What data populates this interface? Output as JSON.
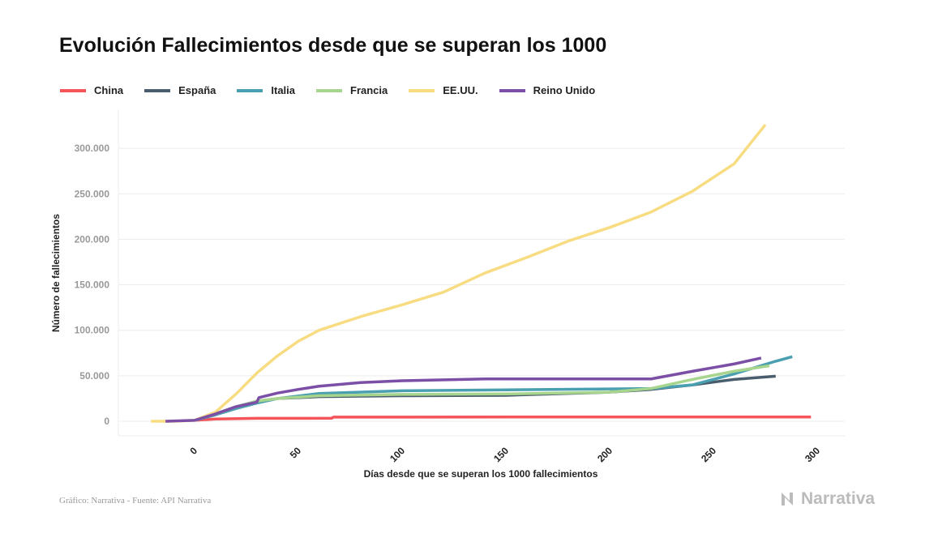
{
  "chart_data": {
    "type": "line",
    "title": "Evolución Fallecimientos desde que se superan los 1000",
    "xlabel": "Días desde que se superan los 1000 fallecimientos",
    "ylabel": "Número de fallecimientos",
    "xlim": [
      -25,
      310
    ],
    "ylim": [
      -15000,
      340000
    ],
    "xticks": [
      0,
      50,
      100,
      150,
      200,
      250,
      300
    ],
    "xtick_labels": [
      "0",
      "50",
      "100",
      "150",
      "200",
      "250",
      "300"
    ],
    "yticks": [
      0,
      50000,
      100000,
      150000,
      200000,
      250000,
      300000
    ],
    "ytick_labels": [
      "0",
      "50.000",
      "100.000",
      "150.000",
      "200.000",
      "250.000",
      "300.000"
    ],
    "grid": true,
    "legend": "top-left",
    "series": [
      {
        "name": "China",
        "color": "#f4545a",
        "points": [
          [
            0,
            1000
          ],
          [
            10,
            2500
          ],
          [
            30,
            3200
          ],
          [
            66,
            3300
          ],
          [
            67,
            4600
          ],
          [
            297,
            4700
          ]
        ]
      },
      {
        "name": "España",
        "color": "#4a5d6e",
        "points": [
          [
            0,
            1000
          ],
          [
            10,
            8000
          ],
          [
            20,
            16000
          ],
          [
            30,
            22000
          ],
          [
            40,
            25000
          ],
          [
            60,
            27000
          ],
          [
            100,
            28000
          ],
          [
            150,
            28500
          ],
          [
            200,
            32000
          ],
          [
            220,
            35000
          ],
          [
            240,
            40000
          ],
          [
            260,
            46000
          ],
          [
            280,
            49500
          ]
        ]
      },
      {
        "name": "Italia",
        "color": "#4aa0b0",
        "points": [
          [
            0,
            1000
          ],
          [
            10,
            7000
          ],
          [
            20,
            14000
          ],
          [
            30,
            20000
          ],
          [
            40,
            25000
          ],
          [
            60,
            30500
          ],
          [
            100,
            33500
          ],
          [
            150,
            34500
          ],
          [
            200,
            35500
          ],
          [
            220,
            36000
          ],
          [
            240,
            40000
          ],
          [
            260,
            52000
          ],
          [
            280,
            66000
          ],
          [
            288,
            71000
          ]
        ]
      },
      {
        "name": "Francia",
        "color": "#a8d58e",
        "points": [
          [
            0,
            1000
          ],
          [
            10,
            8000
          ],
          [
            20,
            16000
          ],
          [
            30,
            22000
          ],
          [
            40,
            25000
          ],
          [
            60,
            28000
          ],
          [
            100,
            29500
          ],
          [
            150,
            30000
          ],
          [
            200,
            32000
          ],
          [
            220,
            36000
          ],
          [
            240,
            46000
          ],
          [
            260,
            55000
          ],
          [
            277,
            61000
          ]
        ]
      },
      {
        "name": "EE.UU.",
        "color": "#f7dc82",
        "points": [
          [
            -21,
            0
          ],
          [
            -10,
            0
          ],
          [
            0,
            1000
          ],
          [
            10,
            10000
          ],
          [
            20,
            30000
          ],
          [
            30,
            53000
          ],
          [
            40,
            72000
          ],
          [
            50,
            88000
          ],
          [
            60,
            100000
          ],
          [
            80,
            115000
          ],
          [
            100,
            128000
          ],
          [
            120,
            142000
          ],
          [
            140,
            163000
          ],
          [
            160,
            180000
          ],
          [
            180,
            198000
          ],
          [
            200,
            213000
          ],
          [
            220,
            230000
          ],
          [
            240,
            253000
          ],
          [
            260,
            283000
          ],
          [
            275,
            326000
          ]
        ]
      },
      {
        "name": "Reino Unido",
        "color": "#7b4fa6",
        "points": [
          [
            -14,
            0
          ],
          [
            0,
            1000
          ],
          [
            10,
            8000
          ],
          [
            20,
            16000
          ],
          [
            30,
            21000
          ],
          [
            31,
            26000
          ],
          [
            40,
            31000
          ],
          [
            50,
            35000
          ],
          [
            60,
            38500
          ],
          [
            80,
            42500
          ],
          [
            100,
            44500
          ],
          [
            140,
            46500
          ],
          [
            220,
            46500
          ],
          [
            240,
            55000
          ],
          [
            260,
            63000
          ],
          [
            273,
            69500
          ]
        ]
      }
    ]
  },
  "footer": {
    "credit": "Gráfico: Narrativa - Fuente: API Narrativa",
    "logo": "Narrativa"
  }
}
